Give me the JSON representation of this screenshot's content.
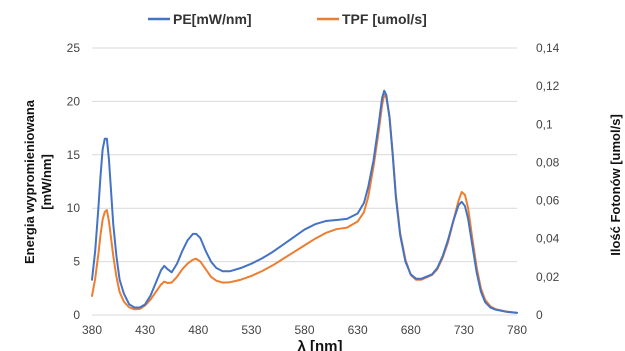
{
  "chart_data": {
    "type": "line",
    "xlabel": "λ [nm]",
    "ylabel_left": "Energia wypromieniowana [mW/nm]",
    "ylabel_right": "Ilość Fotonów [umol/s]",
    "xlim": [
      380,
      780
    ],
    "x_ticks": [
      "380",
      "430",
      "480",
      "530",
      "580",
      "630",
      "680",
      "730",
      "780"
    ],
    "ylim_left": [
      0,
      25
    ],
    "y_ticks_left": [
      "0",
      "5",
      "10",
      "15",
      "20",
      "25"
    ],
    "ylim_right": [
      0,
      0.14
    ],
    "y_ticks_right": [
      "0",
      "0,02",
      "0,04",
      "0,06",
      "0,08",
      "0,1",
      "0,12",
      "0,14"
    ],
    "grid": true,
    "legend_position": "top",
    "series": [
      {
        "name": "PE[mW/nm]",
        "axis": "left",
        "color": "#4472C4",
        "points": [
          [
            380,
            3.3
          ],
          [
            383,
            6
          ],
          [
            386,
            10
          ],
          [
            388,
            13
          ],
          [
            390,
            15.5
          ],
          [
            392,
            16.5
          ],
          [
            394,
            16.5
          ],
          [
            396,
            14.5
          ],
          [
            398,
            11.5
          ],
          [
            400,
            8.5
          ],
          [
            403,
            5.5
          ],
          [
            406,
            3.3
          ],
          [
            410,
            2
          ],
          [
            415,
            1
          ],
          [
            420,
            0.7
          ],
          [
            425,
            0.7
          ],
          [
            430,
            1
          ],
          [
            435,
            1.8
          ],
          [
            440,
            3
          ],
          [
            445,
            4.2
          ],
          [
            448,
            4.6
          ],
          [
            451,
            4.3
          ],
          [
            455,
            4
          ],
          [
            460,
            4.8
          ],
          [
            465,
            6
          ],
          [
            470,
            7
          ],
          [
            475,
            7.6
          ],
          [
            478,
            7.6
          ],
          [
            482,
            7.2
          ],
          [
            487,
            6
          ],
          [
            492,
            5
          ],
          [
            497,
            4.4
          ],
          [
            503,
            4.1
          ],
          [
            510,
            4.1
          ],
          [
            520,
            4.4
          ],
          [
            530,
            4.8
          ],
          [
            540,
            5.3
          ],
          [
            550,
            5.9
          ],
          [
            560,
            6.6
          ],
          [
            570,
            7.3
          ],
          [
            580,
            8
          ],
          [
            590,
            8.5
          ],
          [
            600,
            8.8
          ],
          [
            610,
            8.9
          ],
          [
            620,
            9
          ],
          [
            630,
            9.5
          ],
          [
            636,
            10.5
          ],
          [
            640,
            12
          ],
          [
            645,
            14.5
          ],
          [
            650,
            18
          ],
          [
            653,
            20.3
          ],
          [
            655,
            21
          ],
          [
            657,
            20.6
          ],
          [
            660,
            18.5
          ],
          [
            663,
            15
          ],
          [
            666,
            11
          ],
          [
            670,
            7.5
          ],
          [
            675,
            5
          ],
          [
            680,
            3.8
          ],
          [
            685,
            3.4
          ],
          [
            690,
            3.4
          ],
          [
            700,
            3.8
          ],
          [
            705,
            4.4
          ],
          [
            710,
            5.5
          ],
          [
            715,
            7
          ],
          [
            720,
            8.8
          ],
          [
            725,
            10.3
          ],
          [
            728,
            10.6
          ],
          [
            731,
            10.2
          ],
          [
            734,
            9
          ],
          [
            738,
            6.5
          ],
          [
            742,
            4
          ],
          [
            746,
            2.2
          ],
          [
            750,
            1.2
          ],
          [
            755,
            0.7
          ],
          [
            760,
            0.5
          ],
          [
            770,
            0.3
          ],
          [
            780,
            0.2
          ]
        ]
      },
      {
        "name": "TPF [umol/s]",
        "axis": "right",
        "color": "#ED7D31",
        "points": [
          [
            380,
            0.01
          ],
          [
            383,
            0.019
          ],
          [
            386,
            0.032
          ],
          [
            388,
            0.042
          ],
          [
            390,
            0.05
          ],
          [
            392,
            0.054
          ],
          [
            394,
            0.055
          ],
          [
            396,
            0.049
          ],
          [
            398,
            0.04
          ],
          [
            400,
            0.031
          ],
          [
            403,
            0.02
          ],
          [
            406,
            0.012
          ],
          [
            410,
            0.007
          ],
          [
            415,
            0.004
          ],
          [
            420,
            0.003
          ],
          [
            425,
            0.0032
          ],
          [
            430,
            0.005
          ],
          [
            435,
            0.008
          ],
          [
            440,
            0.012
          ],
          [
            445,
            0.016
          ],
          [
            448,
            0.0175
          ],
          [
            451,
            0.0168
          ],
          [
            455,
            0.017
          ],
          [
            460,
            0.02
          ],
          [
            465,
            0.024
          ],
          [
            470,
            0.027
          ],
          [
            475,
            0.029
          ],
          [
            478,
            0.0295
          ],
          [
            482,
            0.028
          ],
          [
            487,
            0.024
          ],
          [
            492,
            0.02
          ],
          [
            497,
            0.018
          ],
          [
            503,
            0.017
          ],
          [
            510,
            0.0172
          ],
          [
            520,
            0.0185
          ],
          [
            530,
            0.0205
          ],
          [
            540,
            0.023
          ],
          [
            550,
            0.026
          ],
          [
            560,
            0.0295
          ],
          [
            570,
            0.033
          ],
          [
            580,
            0.0365
          ],
          [
            590,
            0.04
          ],
          [
            600,
            0.043
          ],
          [
            610,
            0.045
          ],
          [
            620,
            0.0458
          ],
          [
            630,
            0.049
          ],
          [
            636,
            0.054
          ],
          [
            640,
            0.062
          ],
          [
            645,
            0.078
          ],
          [
            650,
            0.097
          ],
          [
            653,
            0.11
          ],
          [
            655,
            0.1155
          ],
          [
            657,
            0.114
          ],
          [
            660,
            0.104
          ],
          [
            663,
            0.085
          ],
          [
            666,
            0.063
          ],
          [
            670,
            0.043
          ],
          [
            675,
            0.029
          ],
          [
            680,
            0.021
          ],
          [
            685,
            0.0185
          ],
          [
            690,
            0.0185
          ],
          [
            700,
            0.021
          ],
          [
            705,
            0.024
          ],
          [
            710,
            0.03
          ],
          [
            715,
            0.038
          ],
          [
            720,
            0.049
          ],
          [
            725,
            0.06
          ],
          [
            728,
            0.0645
          ],
          [
            731,
            0.063
          ],
          [
            734,
            0.056
          ],
          [
            738,
            0.04
          ],
          [
            742,
            0.025
          ],
          [
            746,
            0.014
          ],
          [
            750,
            0.008
          ],
          [
            755,
            0.0045
          ],
          [
            760,
            0.003
          ],
          [
            770,
            0.0018
          ],
          [
            780,
            0.0012
          ]
        ]
      }
    ]
  }
}
